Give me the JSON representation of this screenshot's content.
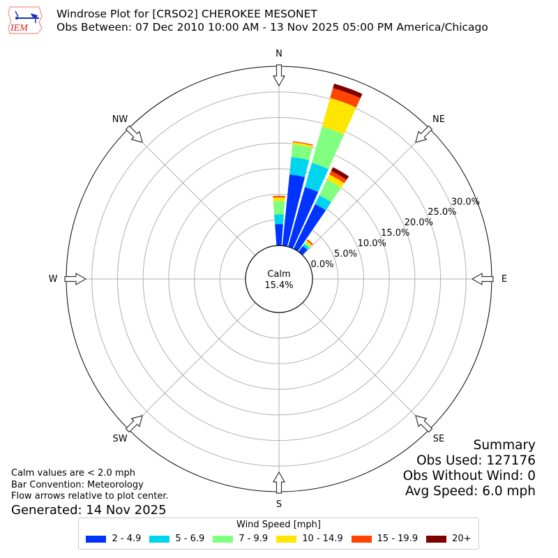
{
  "header": {
    "logo_text": "IEM",
    "title_line1": "Windrose Plot for [CRSO2] CHEROKEE MESONET",
    "title_line2": "Obs Between: 07 Dec 2010 10:00 AM - 13 Nov 2025 05:00 PM America/Chicago"
  },
  "notes": {
    "calm_note": "Calm values are < 2.0 mph",
    "bar_convention": "Bar Convention: Meteorology",
    "flow_note": "Flow arrows relative to plot center.",
    "generated": "Generated: 14 Nov 2025"
  },
  "summary": {
    "title": "Summary",
    "obs_used": "Obs Used: 127176",
    "obs_without_wind": "Obs Without Wind: 0",
    "avg_speed": "Avg Speed: 6.0 mph"
  },
  "legend": {
    "title": "Wind Speed [mph]",
    "items": [
      {
        "label": "2 - 4.9",
        "color": "#0033ff"
      },
      {
        "label": "5 - 6.9",
        "color": "#00d5f0"
      },
      {
        "label": "7 - 9.9",
        "color": "#80ff80"
      },
      {
        "label": "10 - 14.9",
        "color": "#ffe600"
      },
      {
        "label": "15 - 19.9",
        "color": "#ff4500"
      },
      {
        "label": "20+",
        "color": "#800000"
      }
    ]
  },
  "chart_data": {
    "type": "windrose",
    "title": "Windrose Plot for [CRSO2] CHEROKEE MESONET",
    "subtitle": "Obs Between: 07 Dec 2010 10:00 AM - 13 Nov 2025 05:00 PM America/Chicago",
    "calm_label": "Calm",
    "calm_percent": "15.4%",
    "direction_labels": [
      "N",
      "NE",
      "E",
      "SE",
      "S",
      "SW",
      "W",
      "NW"
    ],
    "radial_tick_labels": [
      "0.0%",
      "5.0%",
      "10.0%",
      "15.0%",
      "20.0%",
      "25.0%",
      "30.0%"
    ],
    "radial_max": 35,
    "speed_bins": [
      "2 - 4.9",
      "5 - 6.9",
      "7 - 9.9",
      "10 - 14.9",
      "15 - 19.9",
      "20+"
    ],
    "bar_width_deg": 8.5,
    "bars": [
      {
        "direction_deg": 0,
        "cumulative_percent": [
          4.2,
          6.1,
          8.7,
          9.4,
          9.7,
          9.7
        ]
      },
      {
        "direction_deg": 10,
        "cumulative_percent": [
          14.0,
          17.4,
          19.9,
          20.3,
          20.5,
          20.5
        ]
      },
      {
        "direction_deg": 20,
        "cumulative_percent": [
          12.1,
          17.0,
          24.4,
          30.2,
          32.2,
          33.1
        ]
      },
      {
        "direction_deg": 30,
        "cumulative_percent": [
          9.7,
          11.6,
          15.0,
          16.1,
          16.9,
          17.7
        ]
      },
      {
        "direction_deg": 40,
        "cumulative_percent": [
          1.4,
          1.9,
          2.3,
          2.7,
          3.0,
          3.0
        ]
      }
    ],
    "legend_position": "bottom",
    "grid": true
  }
}
